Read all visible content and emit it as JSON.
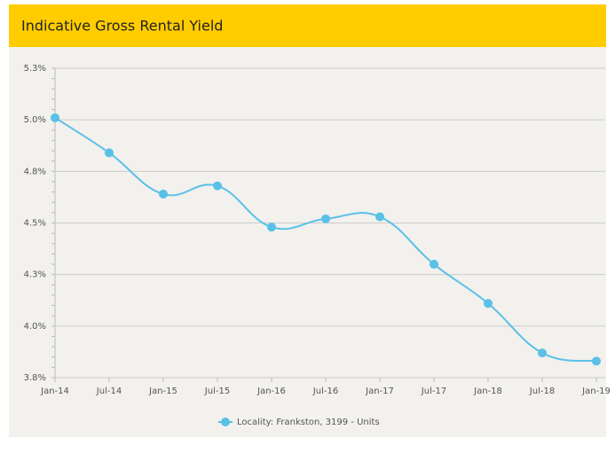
{
  "chart_data": {
    "type": "line",
    "title": "Indicative Gross Rental Yield",
    "categories": [
      "Jan-14",
      "Jul-14",
      "Jan-15",
      "Jul-15",
      "Jan-16",
      "Jul-16",
      "Jan-17",
      "Jul-17",
      "Jan-18",
      "Jul-18",
      "Jan-19"
    ],
    "series": [
      {
        "name": "Locality: Frankston, 3199 - Units",
        "color": "#5bc0e8",
        "values": [
          5.01,
          4.84,
          4.64,
          4.68,
          4.48,
          4.52,
          4.53,
          4.3,
          4.11,
          3.87,
          3.83
        ]
      }
    ],
    "ylim": [
      3.75,
      5.25
    ],
    "yticks": [
      {
        "value": 3.75,
        "label": "3.8%"
      },
      {
        "value": 4.0,
        "label": "4.0%"
      },
      {
        "value": 4.25,
        "label": "4.3%"
      },
      {
        "value": 4.5,
        "label": "4.5%"
      },
      {
        "value": 4.75,
        "label": "4.8%"
      },
      {
        "value": 5.0,
        "label": "5.0%"
      },
      {
        "value": 5.25,
        "label": "5.3%"
      }
    ],
    "grid": true,
    "legend": "bottom"
  }
}
